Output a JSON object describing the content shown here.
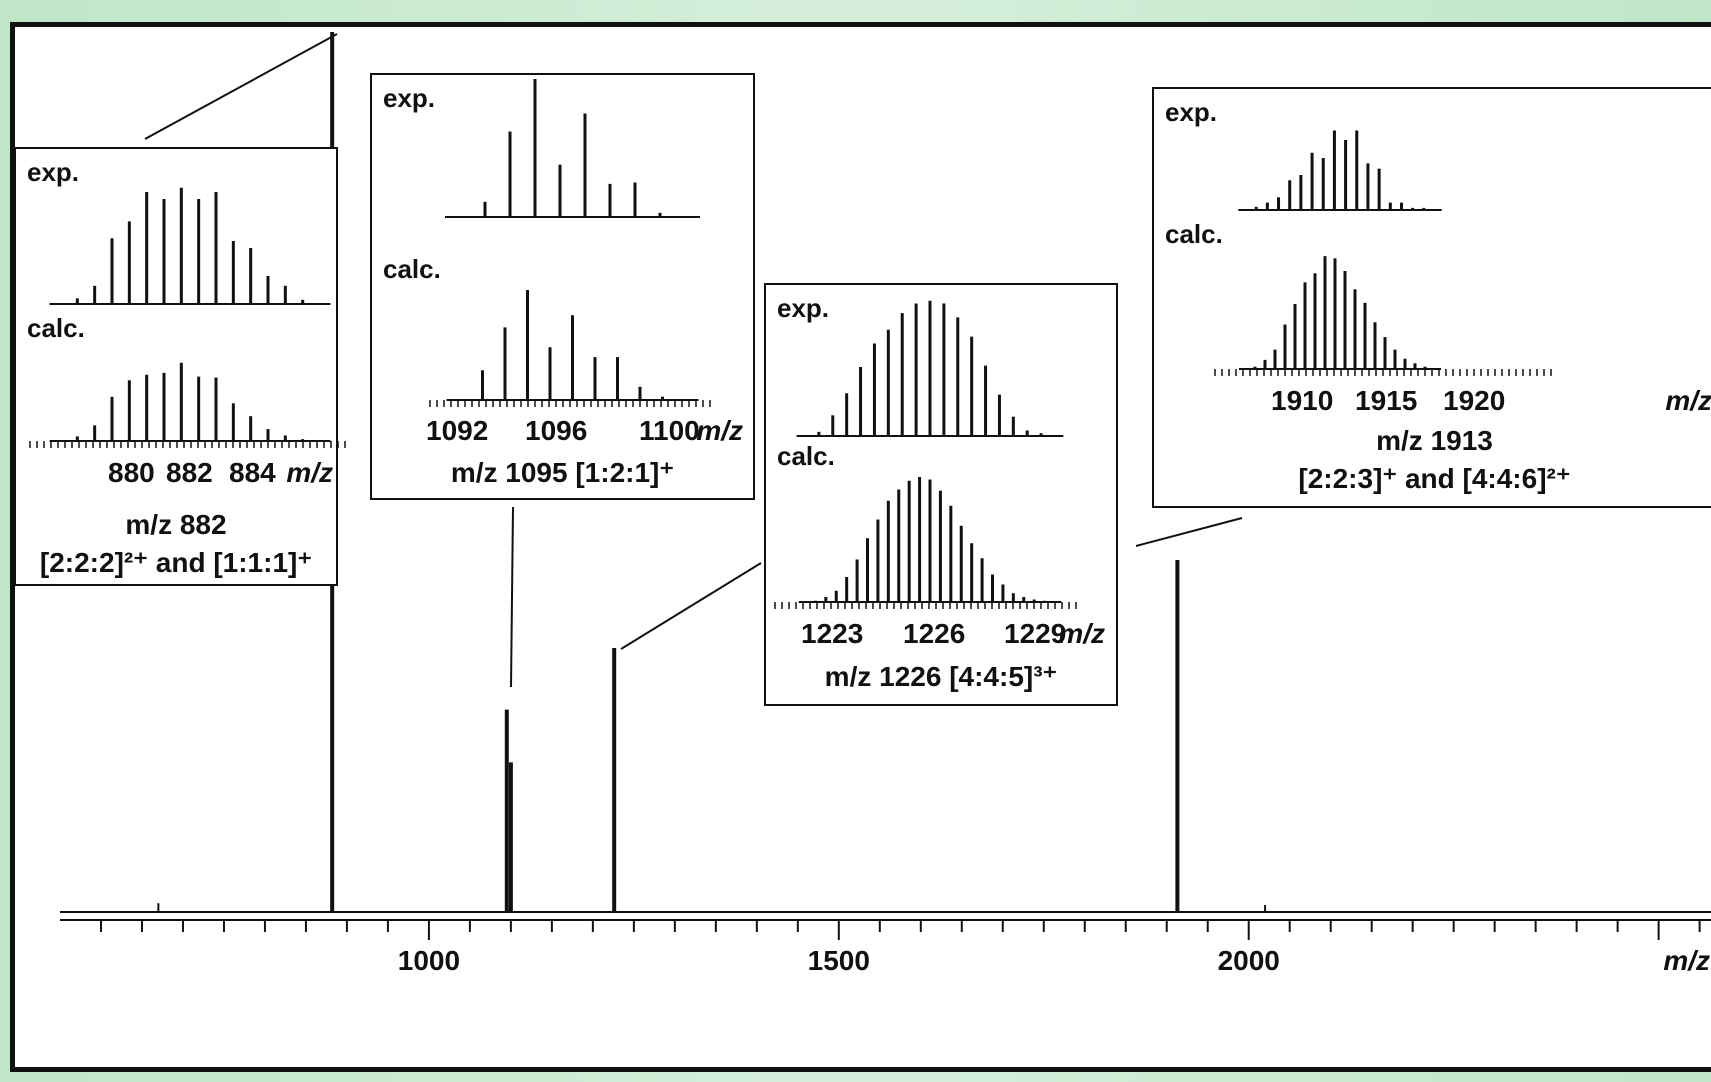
{
  "chart_data": {
    "type": "line",
    "main": {
      "xlabel": "m/z",
      "xlim": [
        550,
        2570
      ],
      "major_ticks": [
        1000,
        1500,
        2000
      ],
      "tick_labels": [
        "1000",
        "1500",
        "2000"
      ],
      "peaks": [
        {
          "mz": 882,
          "rel_intensity": 1.0
        },
        {
          "mz": 1095,
          "rel_intensity": 0.23
        },
        {
          "mz": 1100,
          "rel_intensity": 0.17
        },
        {
          "mz": 1226,
          "rel_intensity": 0.3
        },
        {
          "mz": 1913,
          "rel_intensity": 0.4
        },
        {
          "mz": 670,
          "rel_intensity": 0.01
        },
        {
          "mz": 2020,
          "rel_intensity": 0.008
        }
      ]
    },
    "insets": [
      {
        "exp_label": "exp.",
        "calc_label": "calc.",
        "tick_labels": [
          "880",
          "882",
          "884"
        ],
        "xlabel": "m/z",
        "caption_line1": "m/z  882",
        "caption_line2": "[2:2:2]²⁺ and [1:1:1]⁺",
        "exp": [
          0.04,
          0.13,
          0.47,
          0.59,
          0.8,
          0.75,
          0.83,
          0.75,
          0.8,
          0.45,
          0.4,
          0.2,
          0.13,
          0.03
        ],
        "calc": [
          0.05,
          0.17,
          0.48,
          0.66,
          0.72,
          0.74,
          0.85,
          0.7,
          0.69,
          0.41,
          0.27,
          0.13,
          0.06,
          0.02
        ]
      },
      {
        "exp_label": "exp.",
        "calc_label": "calc.",
        "tick_labels": [
          "1092",
          "1096",
          "1100"
        ],
        "xlabel": "m/z",
        "caption_line1": "m/z  1095 [1:2:1]⁺",
        "exp": [
          0.11,
          0.62,
          1.0,
          0.38,
          0.75,
          0.24,
          0.25,
          0.03
        ],
        "calc": [
          0.27,
          0.66,
          1.0,
          0.48,
          0.77,
          0.39,
          0.39,
          0.12,
          0.03
        ]
      },
      {
        "exp_label": "exp.",
        "calc_label": "calc.",
        "tick_labels": [
          "1223",
          "1226",
          "1229"
        ],
        "xlabel": "m/z",
        "caption_line1": "m/z 1226 [4:4:5]³⁺",
        "exp": [
          0.03,
          0.15,
          0.31,
          0.5,
          0.67,
          0.77,
          0.89,
          0.96,
          0.98,
          0.96,
          0.86,
          0.72,
          0.51,
          0.3,
          0.14,
          0.04,
          0.02
        ],
        "calc": [
          0.01,
          0.04,
          0.09,
          0.2,
          0.34,
          0.51,
          0.66,
          0.81,
          0.9,
          0.97,
          1.0,
          0.98,
          0.89,
          0.77,
          0.61,
          0.47,
          0.35,
          0.22,
          0.14,
          0.07,
          0.04,
          0.02,
          0.01
        ]
      },
      {
        "exp_label": "exp.",
        "calc_label": "calc.",
        "tick_labels": [
          "1910",
          "1915",
          "1920"
        ],
        "xlabel": "m/z",
        "caption_line1": "m/z 1913",
        "caption_line2": "[2:2:3]⁺ and [4:4:6]²⁺",
        "exp": [
          0.03,
          0.07,
          0.12,
          0.28,
          0.33,
          0.54,
          0.49,
          0.75,
          0.66,
          0.75,
          0.44,
          0.39,
          0.07,
          0.07,
          0.02,
          0.02
        ],
        "calc": [
          0.02,
          0.08,
          0.17,
          0.39,
          0.57,
          0.76,
          0.84,
          0.99,
          0.97,
          0.86,
          0.7,
          0.58,
          0.41,
          0.28,
          0.17,
          0.09,
          0.05,
          0.02
        ]
      }
    ]
  }
}
